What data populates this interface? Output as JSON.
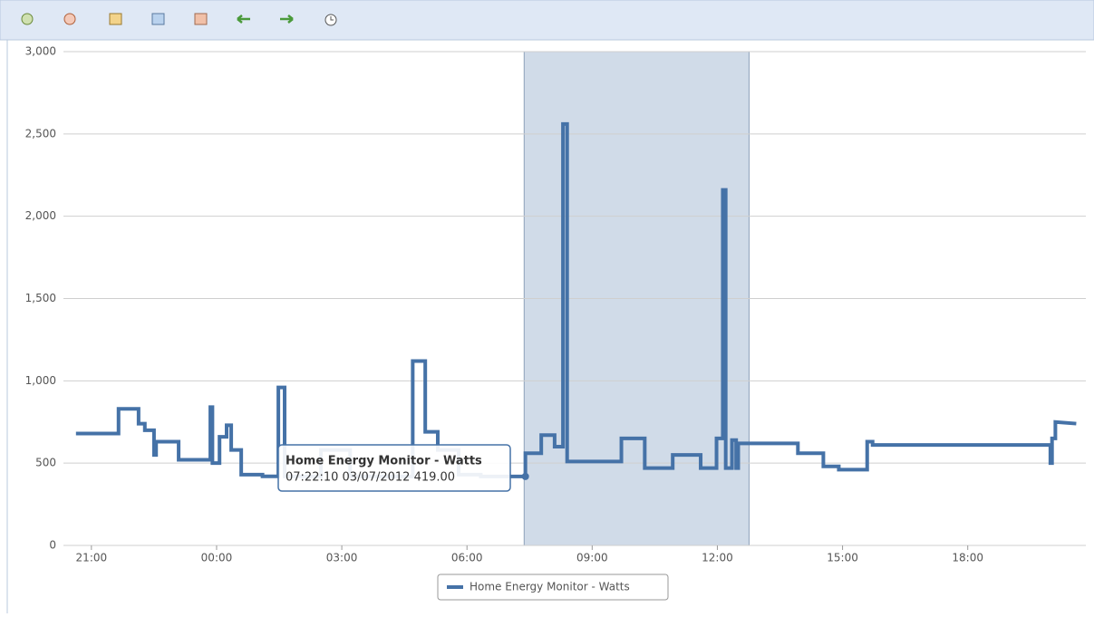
{
  "chart_data": {
    "type": "line",
    "series": [
      {
        "name": "Home Energy Monitor - Watts",
        "color": "#4572a7",
        "x": [
          20.63,
          21.65,
          21.65,
          22.13,
          22.13,
          22.28,
          22.28,
          22.5,
          22.5,
          22.55,
          22.55,
          23.09,
          23.09,
          23.85,
          23.85,
          23.9,
          23.9,
          24.07,
          24.07,
          24.24,
          24.24,
          24.35,
          24.35,
          24.59,
          24.59,
          25.1,
          25.1,
          25.48,
          25.48,
          25.63,
          25.63,
          26.5,
          26.5,
          27.2,
          27.2,
          28.7,
          28.7,
          29.0,
          29.0,
          29.3,
          29.3,
          29.8,
          29.8,
          30.33,
          30.33,
          31.4,
          31.4,
          31.78,
          31.78,
          32.1,
          32.1,
          32.3,
          32.3,
          32.4,
          32.4,
          33.7,
          33.7,
          34.26,
          34.26,
          34.93,
          34.93,
          35.6,
          35.6,
          35.98,
          35.98,
          36.13,
          36.13,
          36.2,
          36.2,
          36.35,
          36.35,
          36.45,
          36.45,
          36.5,
          36.5,
          37.93,
          37.93,
          38.54,
          38.54,
          38.91,
          38.91,
          39.59,
          39.59,
          39.72,
          39.72,
          43.98,
          43.98,
          44.02,
          44.02,
          44.1,
          44.1,
          44.6
        ],
        "values": [
          680,
          680,
          830,
          830,
          740,
          740,
          700,
          700,
          550,
          550,
          630,
          630,
          520,
          520,
          840,
          840,
          500,
          500,
          660,
          660,
          730,
          730,
          580,
          580,
          430,
          430,
          420,
          420,
          960,
          960,
          419,
          419,
          580,
          580,
          419,
          419,
          1120,
          1120,
          690,
          690,
          580,
          580,
          430,
          430,
          419,
          419,
          560,
          560,
          670,
          670,
          600,
          600,
          2560,
          2560,
          510,
          510,
          650,
          650,
          470,
          470,
          550,
          550,
          470,
          470,
          650,
          650,
          2160,
          2160,
          470,
          470,
          640,
          640,
          470,
          470,
          620,
          620,
          560,
          560,
          480,
          480,
          460,
          460,
          630,
          630,
          610,
          610,
          500,
          500,
          650,
          650,
          750,
          740
        ]
      }
    ],
    "tooltip": {
      "point": 45,
      "title": "Home Energy Monitor - Watts",
      "text": "07:22:10 03/07/2012 419.00"
    },
    "selection": [
      31.37,
      36.76
    ],
    "xlim": [
      20.33,
      44.83
    ],
    "xticks": [
      {
        "value": 21,
        "label": "21:00"
      },
      {
        "value": 24,
        "label": "00:00"
      },
      {
        "value": 27,
        "label": "03:00"
      },
      {
        "value": 30,
        "label": "06:00"
      },
      {
        "value": 33,
        "label": "09:00"
      },
      {
        "value": 36,
        "label": "12:00"
      },
      {
        "value": 39,
        "label": "15:00"
      },
      {
        "value": 42,
        "label": "18:00"
      }
    ],
    "ylim": [
      0,
      3000
    ],
    "yticks": [
      0,
      {
        "value": 500,
        "label": "500"
      },
      {
        "value": 1000,
        "label": "1,000"
      },
      {
        "value": 1500,
        "label": "1,500"
      },
      {
        "value": 2000,
        "label": "2,000"
      },
      {
        "value": 2500,
        "label": "2,500"
      },
      {
        "value": 3000,
        "label": "3,000"
      }
    ],
    "grid": true
  }
}
